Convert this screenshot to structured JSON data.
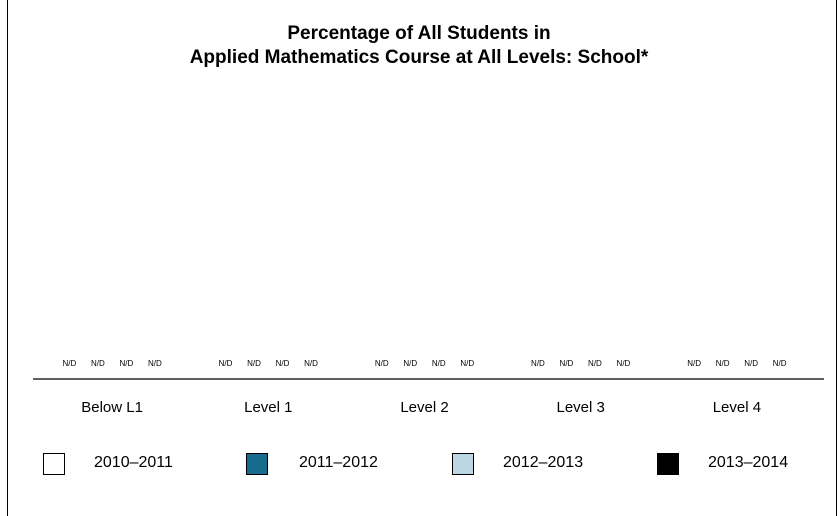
{
  "chart_data": {
    "type": "bar",
    "title_lines": [
      "Percentage of All Students in",
      "Applied Mathematics Course at All Levels: School*"
    ],
    "xlabel": "",
    "ylabel": "",
    "categories": [
      "Below L1",
      "Level 1",
      "Level 2",
      "Level 3",
      "Level 4"
    ],
    "series": [
      {
        "name": "2010–2011",
        "color": "#ffffff",
        "values": [
          null,
          null,
          null,
          null,
          null
        ],
        "value_labels": [
          "N/D",
          "N/D",
          "N/D",
          "N/D",
          "N/D"
        ]
      },
      {
        "name": "2011–2012",
        "color": "#176b8c",
        "values": [
          null,
          null,
          null,
          null,
          null
        ],
        "value_labels": [
          "N/D",
          "N/D",
          "N/D",
          "N/D",
          "N/D"
        ]
      },
      {
        "name": "2012–2013",
        "color": "#bcd7e3",
        "values": [
          null,
          null,
          null,
          null,
          null
        ],
        "value_labels": [
          "N/D",
          "N/D",
          "N/D",
          "N/D",
          "N/D"
        ]
      },
      {
        "name": "2013–2014",
        "color": "#000000",
        "values": [
          null,
          null,
          null,
          null,
          null
        ],
        "value_labels": [
          "N/D",
          "N/D",
          "N/D",
          "N/D",
          "N/D"
        ]
      }
    ],
    "legend_position": "bottom",
    "grid": false
  }
}
